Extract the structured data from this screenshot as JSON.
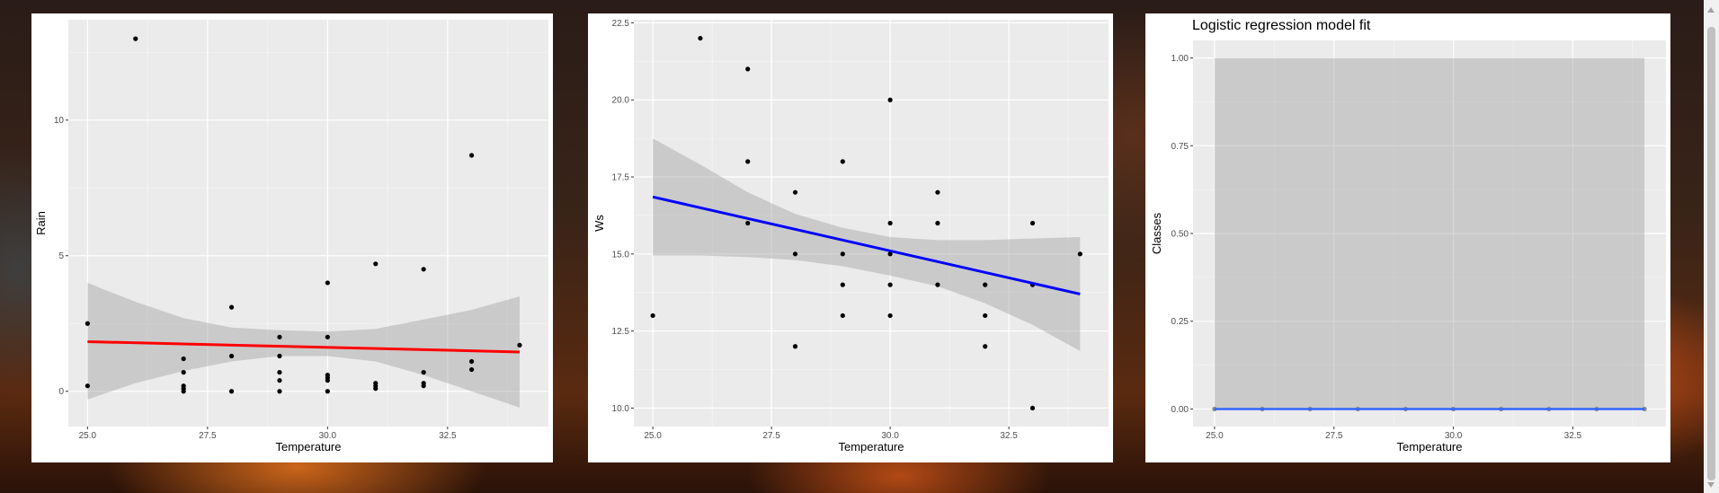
{
  "chart_data": [
    {
      "id": "rain",
      "type": "scatter",
      "title": "",
      "xlabel": "Temperature",
      "ylabel": "Rain",
      "xlim": [
        24.6,
        34.6
      ],
      "ylim": [
        -1.3,
        13.7
      ],
      "xticks": [
        25,
        27.5,
        30,
        32.5
      ],
      "xtick_labels": [
        "25.0",
        "27.5",
        "30.0",
        "32.5"
      ],
      "yticks": [
        0,
        5,
        10
      ],
      "ytick_labels": [
        "0",
        "5",
        "10"
      ],
      "grid": true,
      "points": [
        [
          25,
          2.5
        ],
        [
          25,
          0.2
        ],
        [
          26,
          13
        ],
        [
          27,
          1.2
        ],
        [
          27,
          0.7
        ],
        [
          27,
          0.2
        ],
        [
          27,
          0.1
        ],
        [
          27,
          0
        ],
        [
          28,
          3.1
        ],
        [
          28,
          1.3
        ],
        [
          28,
          0
        ],
        [
          29,
          2.0
        ],
        [
          29,
          1.3
        ],
        [
          29,
          0.7
        ],
        [
          29,
          0.4
        ],
        [
          29,
          0
        ],
        [
          30,
          4.0
        ],
        [
          30,
          2.0
        ],
        [
          30,
          0.6
        ],
        [
          30,
          0.5
        ],
        [
          30,
          0.4
        ],
        [
          30,
          0
        ],
        [
          31,
          4.7
        ],
        [
          31,
          0.3
        ],
        [
          31,
          0.2
        ],
        [
          31,
          0.1
        ],
        [
          32,
          4.5
        ],
        [
          32,
          0.7
        ],
        [
          32,
          0.3
        ],
        [
          32,
          0.2
        ],
        [
          33,
          8.7
        ],
        [
          33,
          1.1
        ],
        [
          33,
          0.8
        ],
        [
          34,
          1.7
        ]
      ],
      "fit": {
        "x": [
          25,
          34
        ],
        "y": [
          1.83,
          1.45
        ],
        "color": "#ff0000"
      },
      "ribbon": {
        "x": [
          25,
          26,
          27,
          28,
          29,
          30,
          31,
          32,
          33,
          34
        ],
        "lower": [
          -0.3,
          0.3,
          0.75,
          1.1,
          1.3,
          1.3,
          1.1,
          0.6,
          0.0,
          -0.6
        ],
        "upper": [
          4.0,
          3.3,
          2.7,
          2.35,
          2.25,
          2.2,
          2.3,
          2.65,
          3.0,
          3.5
        ]
      }
    },
    {
      "id": "ws",
      "type": "scatter",
      "title": "",
      "xlabel": "Temperature",
      "ylabel": "Ws",
      "xlim": [
        24.6,
        34.6
      ],
      "ylim": [
        9.4,
        22.6
      ],
      "xticks": [
        25,
        27.5,
        30,
        32.5
      ],
      "xtick_labels": [
        "25.0",
        "27.5",
        "30.0",
        "32.5"
      ],
      "yticks": [
        10,
        12.5,
        15,
        17.5,
        20,
        22.5
      ],
      "ytick_labels": [
        "10.0",
        "12.5",
        "15.0",
        "17.5",
        "20.0",
        "22.5"
      ],
      "grid": true,
      "points": [
        [
          25,
          13
        ],
        [
          26,
          22
        ],
        [
          27,
          21
        ],
        [
          27,
          18
        ],
        [
          27,
          16
        ],
        [
          28,
          17
        ],
        [
          28,
          15
        ],
        [
          28,
          12
        ],
        [
          29,
          18
        ],
        [
          29,
          15
        ],
        [
          29,
          14
        ],
        [
          29,
          13
        ],
        [
          30,
          20
        ],
        [
          30,
          16
        ],
        [
          30,
          15
        ],
        [
          30,
          14
        ],
        [
          30,
          13
        ],
        [
          31,
          17
        ],
        [
          31,
          16
        ],
        [
          31,
          14
        ],
        [
          32,
          14
        ],
        [
          32,
          13
        ],
        [
          32,
          12
        ],
        [
          33,
          16
        ],
        [
          33,
          14
        ],
        [
          33,
          10
        ],
        [
          34,
          15
        ]
      ],
      "fit": {
        "x": [
          25,
          34
        ],
        "y": [
          16.85,
          13.7
        ],
        "color": "#0000ff"
      },
      "ribbon": {
        "x": [
          25,
          26,
          27,
          28,
          29,
          30,
          31,
          32,
          33,
          34
        ],
        "lower": [
          14.95,
          14.95,
          14.9,
          14.8,
          14.6,
          14.3,
          13.95,
          13.4,
          12.7,
          11.85
        ],
        "upper": [
          18.75,
          17.9,
          17.0,
          16.3,
          15.85,
          15.55,
          15.45,
          15.45,
          15.5,
          15.55
        ]
      }
    },
    {
      "id": "classes",
      "type": "line",
      "title": "Logistic regression model fit",
      "xlabel": "Temperature",
      "ylabel": "Classes",
      "xlim": [
        24.55,
        34.45
      ],
      "ylim": [
        -0.05,
        1.05
      ],
      "xticks": [
        25,
        27.5,
        30,
        32.5
      ],
      "xtick_labels": [
        "25.0",
        "27.5",
        "30.0",
        "32.5"
      ],
      "yticks": [
        0,
        0.25,
        0.5,
        0.75,
        1
      ],
      "ytick_labels": [
        "0.00",
        "0.25",
        "0.50",
        "0.75",
        "1.00"
      ],
      "grid": true,
      "points": [
        [
          25,
          0
        ],
        [
          26,
          0
        ],
        [
          27,
          0
        ],
        [
          28,
          0
        ],
        [
          29,
          0
        ],
        [
          30,
          0
        ],
        [
          31,
          0
        ],
        [
          32,
          0
        ],
        [
          33,
          0
        ],
        [
          34,
          0
        ]
      ],
      "fit": {
        "x": [
          25,
          34
        ],
        "y": [
          0,
          0
        ],
        "color": "#3366ff"
      },
      "ribbon": {
        "x": [
          25,
          34
        ],
        "lower": [
          0,
          0
        ],
        "upper": [
          1,
          1
        ]
      }
    }
  ]
}
